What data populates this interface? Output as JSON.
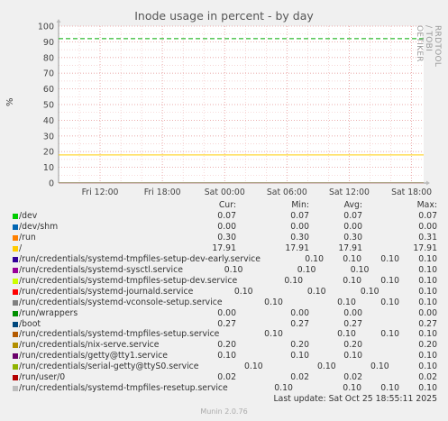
{
  "chart_data": {
    "type": "line",
    "title": "Inode usage in percent - by day",
    "ylabel": "%",
    "ylim": [
      0,
      100
    ],
    "yticks": [
      0,
      10,
      20,
      30,
      40,
      50,
      60,
      70,
      80,
      90,
      100
    ],
    "xlim": [
      "2025-10-24 08:00",
      "2025-10-25 19:10"
    ],
    "xtick_labels": [
      "Fri 12:00",
      "Fri 18:00",
      "Sat 00:00",
      "Sat 06:00",
      "Sat 12:00",
      "Sat 18:00"
    ],
    "xtick_times": [
      "2025-10-24 12:00",
      "2025-10-24 18:00",
      "2025-10-25 00:00",
      "2025-10-25 06:00",
      "2025-10-25 12:00",
      "2025-10-25 18:00"
    ],
    "grid": true,
    "warning_line": 92,
    "warning_color": "#00aa00",
    "side_label": "RRDTOOL / TOBI OETIKER",
    "columns": [
      "Cur:",
      "Min:",
      "Avg:",
      "Max:"
    ],
    "series": [
      {
        "name": "/dev",
        "color": "#00cc00",
        "cur": "0.07",
        "min": "0.07",
        "avg": "0.07",
        "max": "0.07"
      },
      {
        "name": "/dev/shm",
        "color": "#0066b3",
        "cur": "0.00",
        "min": "0.00",
        "avg": "0.00",
        "max": "0.00"
      },
      {
        "name": "/run",
        "color": "#ff8000",
        "cur": "0.30",
        "min": "0.30",
        "avg": "0.30",
        "max": "0.31"
      },
      {
        "name": "/",
        "color": "#ffcc00",
        "cur": "17.91",
        "min": "17.91",
        "avg": "17.91",
        "max": "17.91"
      },
      {
        "name": "/run/credentials/systemd-tmpfiles-setup-dev-early.service",
        "color": "#330099",
        "cur": "0.10",
        "min": "0.10",
        "avg": "0.10",
        "max": "0.10"
      },
      {
        "name": "/run/credentials/systemd-sysctl.service",
        "color": "#990099",
        "cur": "0.10",
        "min": "0.10",
        "avg": "0.10",
        "max": "0.10"
      },
      {
        "name": "/run/credentials/systemd-tmpfiles-setup-dev.service",
        "color": "#ccff00",
        "cur": "0.10",
        "min": "0.10",
        "avg": "0.10",
        "max": "0.10"
      },
      {
        "name": "/run/credentials/systemd-journald.service",
        "color": "#ff0000",
        "cur": "0.10",
        "min": "0.10",
        "avg": "0.10",
        "max": "0.10"
      },
      {
        "name": "/run/credentials/systemd-vconsole-setup.service",
        "color": "#808080",
        "cur": "0.10",
        "min": "0.10",
        "avg": "0.10",
        "max": "0.10"
      },
      {
        "name": "/run/wrappers",
        "color": "#008f00",
        "cur": "0.00",
        "min": "0.00",
        "avg": "0.00",
        "max": "0.00"
      },
      {
        "name": "/boot",
        "color": "#00487d",
        "cur": "0.27",
        "min": "0.27",
        "avg": "0.27",
        "max": "0.27"
      },
      {
        "name": "/run/credentials/systemd-tmpfiles-setup.service",
        "color": "#b35a00",
        "cur": "0.10",
        "min": "0.10",
        "avg": "0.10",
        "max": "0.10"
      },
      {
        "name": "/run/credentials/nix-serve.service",
        "color": "#b38f00",
        "cur": "0.20",
        "min": "0.20",
        "avg": "0.20",
        "max": "0.20"
      },
      {
        "name": "/run/credentials/getty@tty1.service",
        "color": "#6b006b",
        "cur": "0.10",
        "min": "0.10",
        "avg": "0.10",
        "max": "0.10"
      },
      {
        "name": "/run/credentials/serial-getty@ttyS0.service",
        "color": "#8fb300",
        "cur": "0.10",
        "min": "0.10",
        "avg": "0.10",
        "max": "0.10"
      },
      {
        "name": "/run/user/0",
        "color": "#b30000",
        "cur": "0.02",
        "min": "0.02",
        "avg": "0.02",
        "max": "0.02"
      },
      {
        "name": "/run/credentials/systemd-tmpfiles-resetup.service",
        "color": "#bebebe",
        "cur": "0.10",
        "min": "0.10",
        "avg": "0.10",
        "max": "0.10"
      }
    ],
    "last_update": "Last update: Sat Oct 25 18:55:11 2025",
    "version": "Munin 2.0.76"
  }
}
